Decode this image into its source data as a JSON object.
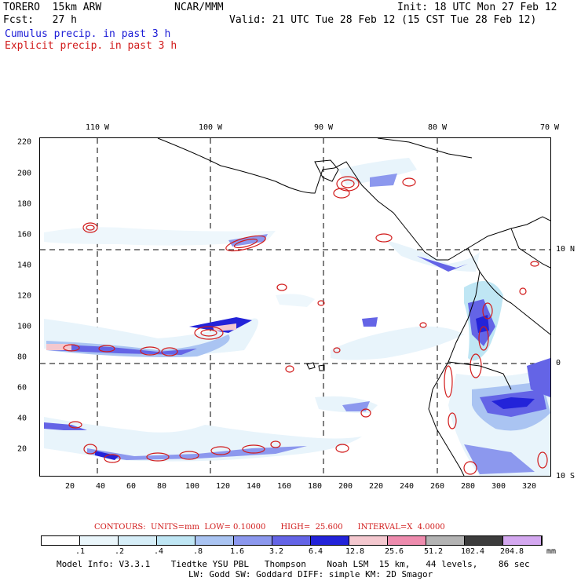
{
  "header": {
    "model": "TORERO  15km ARW",
    "org": "NCAR/MMM",
    "init": "Init: 18 UTC Mon 27 Feb 12",
    "fcst": "Fcst:   27 h",
    "valid": "Valid: 21 UTC Tue 28 Feb 12 (15 CST Tue 28 Feb 12)",
    "legend_cumulus": "Cumulus precip. in past 3 h",
    "legend_explicit": "Explicit precip. in past 3 h"
  },
  "colors": {
    "cumulus_text": "#1b1bd6",
    "explicit_text": "#d11a1a",
    "coastline": "#000000",
    "contour": "#d11a1a"
  },
  "map": {
    "lon_labels": [
      "110 W",
      "100 W",
      "90 W",
      "80 W",
      "70 W"
    ],
    "lat_labels": [
      "10 N",
      "0",
      "10 S"
    ],
    "y_ticks": [
      "220",
      "200",
      "180",
      "160",
      "140",
      "120",
      "100",
      "80",
      "60",
      "40",
      "20"
    ],
    "x_ticks": [
      "20",
      "40",
      "60",
      "80",
      "100",
      "120",
      "140",
      "160",
      "180",
      "200",
      "220",
      "240",
      "260",
      "280",
      "300",
      "320"
    ]
  },
  "contours_line": "CONTOURS:  UNITS=mm  LOW= 0.10000      HIGH=  25.600      INTERVAL=X  4.0000",
  "colorbar": {
    "colors": [
      "#ffffff",
      "#eaf6fb",
      "#d6eef8",
      "#bfe6f4",
      "#aac4f2",
      "#8c98ee",
      "#6464e6",
      "#2323d9",
      "#f4c8cf",
      "#ee8cae",
      "#b3b3b3",
      "#3c3c3c",
      "#d4a8f0"
    ],
    "labels": [
      ".1",
      ".2",
      ".4",
      ".8",
      "1.6",
      "3.2",
      "6.4",
      "12.8",
      "25.6",
      "51.2",
      "102.4",
      "204.8"
    ],
    "units": "mm"
  },
  "footer": {
    "line1": "Model Info: V3.3.1    Tiedtke YSU PBL   Thompson    Noah LSM  15 km,   44 levels,    86 sec",
    "line2": "LW: Godd SW: Goddard DIFF: simple KM: 2D Smagor"
  }
}
